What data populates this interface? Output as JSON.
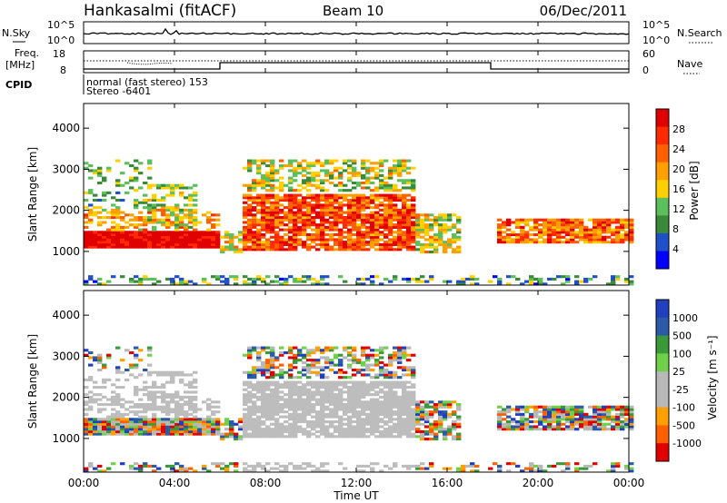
{
  "header": {
    "station": "Hankasalmi (fitACF)",
    "beam": "Beam 10",
    "date": "06/Dec/2011"
  },
  "strips": {
    "nsky_label": "N.Sky",
    "nsky_ticks": [
      "10^5",
      "10^0"
    ],
    "nsearch_label": "N.Search",
    "nsearch_ticks": [
      "10^5",
      "10^0"
    ],
    "freq_label_1": "Freq.",
    "freq_label_2": "[MHz]",
    "freq_ticks": [
      "18",
      "8"
    ],
    "nave_label": "Nave",
    "nave_ticks": [
      "60",
      "0"
    ],
    "cpid_label": "CPID",
    "cpid_line1": "normal (fast stereo) 153",
    "cpid_line2": "Stereo -6401"
  },
  "colors": {
    "power_scale": [
      "#0000ff",
      "#2050c8",
      "#3a8a3a",
      "#5cbf5c",
      "#ffd000",
      "#ffa000",
      "#ff6000",
      "#ff2a00",
      "#e00000"
    ],
    "velocity_scale": [
      "#e00000",
      "#ff6000",
      "#ffa000",
      "#b8b8b8",
      "#b8b8b8",
      "#6fd04a",
      "#3a9a3a",
      "#2a5aa8",
      "#2040c0"
    ],
    "ground_scatter": "#bdbdbd"
  },
  "chart_data": [
    {
      "type": "heatmap",
      "panel": "power",
      "ylabel": "Slant Range [km]",
      "xlabel": "Time UT",
      "x_ticks": [
        "00:00",
        "04:00",
        "08:00",
        "12:00",
        "16:00",
        "20:00",
        "00:00"
      ],
      "y_ticks": [
        1000,
        2000,
        3000,
        4000
      ],
      "ylim": [
        180,
        4600
      ],
      "xlim_hours": [
        0,
        24
      ],
      "colorbar": {
        "label": "Power [dB]",
        "ticks": [
          4,
          8,
          12,
          16,
          20,
          24,
          28
        ],
        "range": [
          0,
          32
        ]
      }
    },
    {
      "type": "heatmap",
      "panel": "velocity",
      "ylabel": "Slant Range [km]",
      "xlabel": "Time UT",
      "x_ticks": [
        "00:00",
        "04:00",
        "08:00",
        "12:00",
        "16:00",
        "20:00",
        "00:00"
      ],
      "y_ticks": [
        1000,
        2000,
        3000,
        4000
      ],
      "ylim": [
        180,
        4600
      ],
      "xlim_hours": [
        0,
        24
      ],
      "colorbar": {
        "label": "Velocity [m s⁻¹]",
        "ticks": [
          "1000",
          "500",
          "100",
          "25",
          "-25",
          "-100",
          "-500",
          "-1000"
        ]
      }
    }
  ]
}
